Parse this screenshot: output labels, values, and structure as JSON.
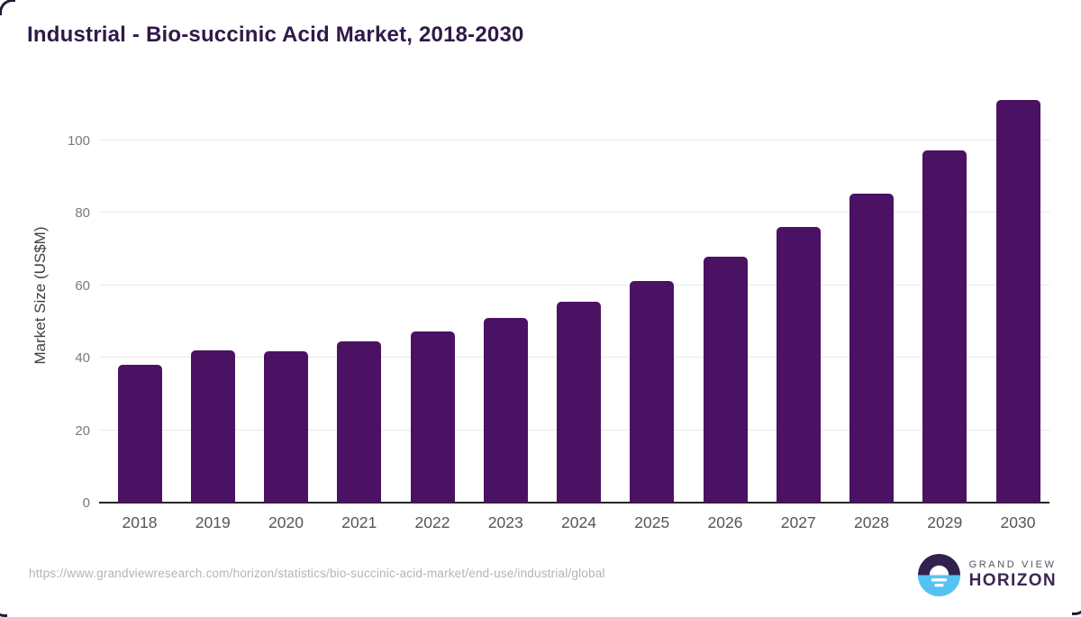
{
  "title": "Industrial - Bio-succinic Acid Market, 2018-2030",
  "chart_data": {
    "type": "bar",
    "categories": [
      "2018",
      "2019",
      "2020",
      "2021",
      "2022",
      "2023",
      "2024",
      "2025",
      "2026",
      "2027",
      "2028",
      "2029",
      "2030"
    ],
    "values": [
      38.1,
      42.0,
      41.9,
      44.6,
      47.2,
      50.9,
      55.6,
      61.3,
      68.0,
      76.0,
      85.3,
      97.2,
      111.1
    ],
    "title": "Industrial - Bio-succinic Acid Market, 2018-2030",
    "xlabel": "",
    "ylabel": "Market Size (US$M)",
    "ylim": [
      0,
      115
    ],
    "yticks": [
      0,
      20,
      40,
      60,
      80,
      100
    ],
    "grid": true,
    "legend": "none"
  },
  "colors": {
    "bar": "#4b1162",
    "title_text": "#2e1a47",
    "gridline": "#e8e8e8",
    "axis_line": "#262626",
    "logo_purple": "#32204e",
    "logo_blue": "#55c3f2"
  },
  "footer": {
    "source_url": "https://www.grandviewresearch.com/horizon/statistics/bio-succinic-acid-market/end-use/industrial/global",
    "logo_top_text": "GRAND VIEW",
    "logo_bottom_text": "HORIZON"
  }
}
